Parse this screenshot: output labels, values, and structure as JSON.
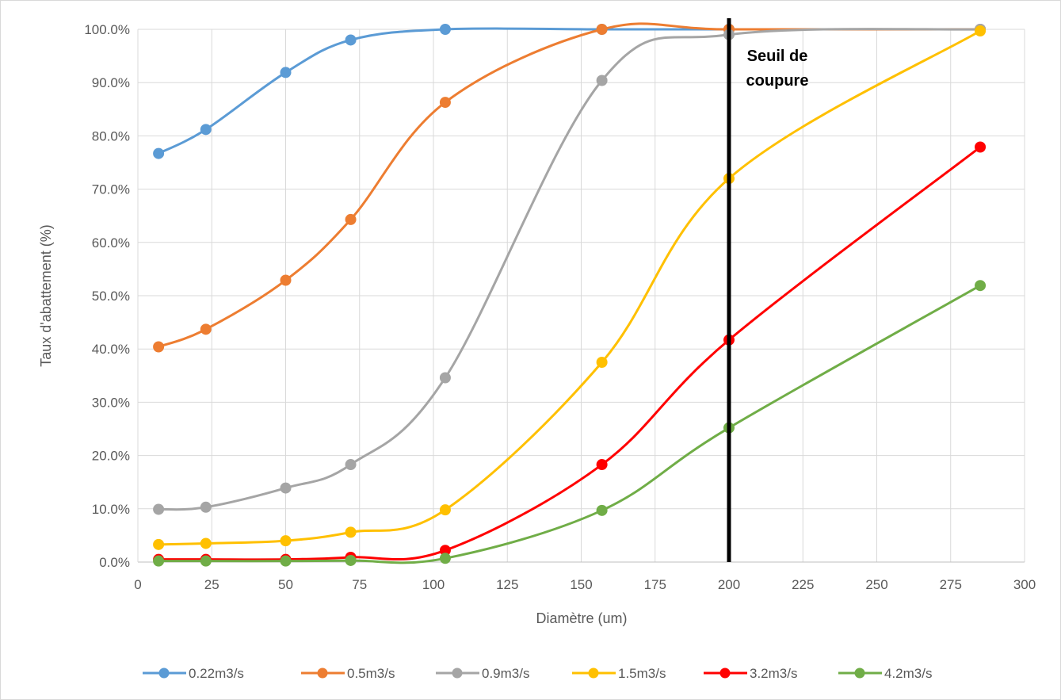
{
  "chart_data": {
    "type": "line",
    "title": "",
    "xlabel": "Diamètre (um)",
    "ylabel": "Taux d'abattement (%)",
    "xlim": [
      0,
      300
    ],
    "ylim": [
      0,
      1
    ],
    "x_ticks": [
      "0",
      "25",
      "50",
      "75",
      "100",
      "125",
      "150",
      "175",
      "200",
      "225",
      "250",
      "275",
      "300"
    ],
    "y_ticks": [
      "0.0%",
      "10.0%",
      "20.0%",
      "30.0%",
      "40.0%",
      "50.0%",
      "60.0%",
      "70.0%",
      "80.0%",
      "90.0%",
      "100.0%"
    ],
    "grid": true,
    "legend_position": "bottom",
    "x": [
      7,
      23,
      50,
      72,
      104,
      157,
      200,
      285
    ],
    "series": [
      {
        "name": "0.22m3/s",
        "color": "#5B9BD5",
        "values": [
          0.767,
          0.812,
          0.919,
          0.98,
          1.0,
          1.0,
          1.0,
          1.0
        ]
      },
      {
        "name": "0.5m3/s",
        "color": "#ED7D31",
        "values": [
          0.404,
          0.437,
          0.529,
          0.643,
          0.863,
          1.0,
          1.0,
          1.0
        ]
      },
      {
        "name": "0.9m3/s",
        "color": "#A5A5A5",
        "values": [
          0.099,
          0.103,
          0.139,
          0.183,
          0.346,
          0.904,
          0.99,
          1.0
        ]
      },
      {
        "name": "1.5m3/s",
        "color": "#FFC000",
        "values": [
          0.033,
          0.035,
          0.04,
          0.056,
          0.098,
          0.375,
          0.72,
          0.997
        ]
      },
      {
        "name": "3.2m3/s",
        "color": "#FF0000",
        "values": [
          0.005,
          0.005,
          0.005,
          0.009,
          0.022,
          0.183,
          0.417,
          0.779
        ]
      },
      {
        "name": "4.2m3/s",
        "color": "#70AD47",
        "values": [
          0.002,
          0.002,
          0.002,
          0.003,
          0.007,
          0.097,
          0.252,
          0.519
        ]
      }
    ],
    "threshold": {
      "x": 200,
      "label_line1": "Seuil de",
      "label_line2": "coupure",
      "color": "#000000"
    }
  }
}
